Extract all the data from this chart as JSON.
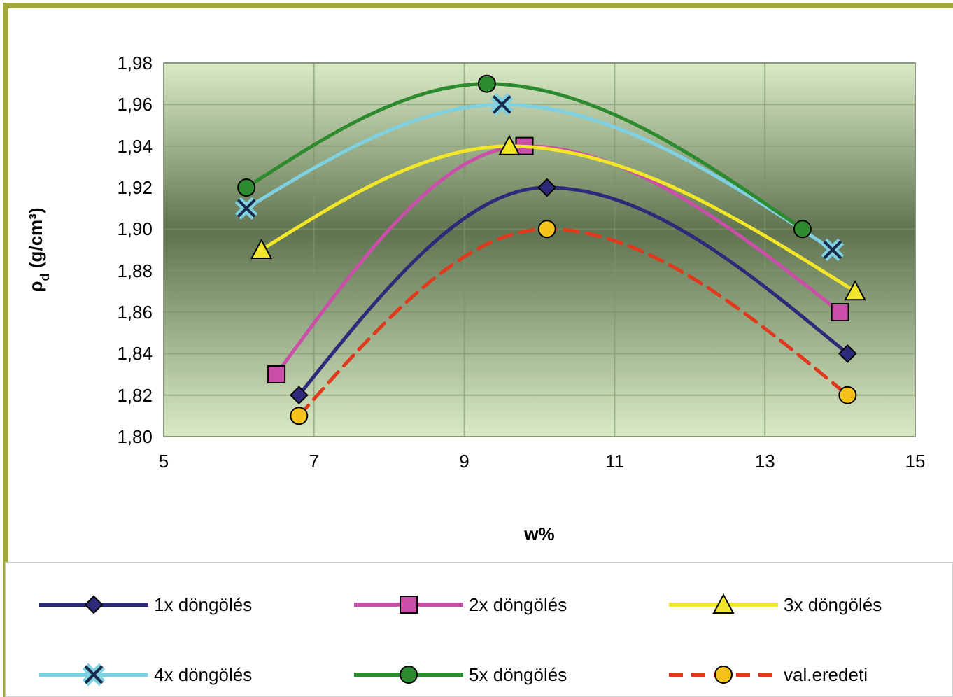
{
  "chart_data": {
    "type": "line",
    "xlabel": "w%",
    "ylabel": "ρ$_{d}$ (g/cm³)",
    "xlim": [
      5,
      15
    ],
    "xticks": [
      5,
      7,
      9,
      11,
      13,
      15
    ],
    "ylim": [
      1.8,
      1.98
    ],
    "yticks": [
      {
        "value": 1.8,
        "label": "1,80"
      },
      {
        "value": 1.82,
        "label": "1,82"
      },
      {
        "value": 1.84,
        "label": "1,84"
      },
      {
        "value": 1.86,
        "label": "1,86"
      },
      {
        "value": 1.88,
        "label": "1,88"
      },
      {
        "value": 1.9,
        "label": "1,90"
      },
      {
        "value": 1.92,
        "label": "1,92"
      },
      {
        "value": 1.94,
        "label": "1,94"
      },
      {
        "value": 1.96,
        "label": "1,96"
      },
      {
        "value": 1.98,
        "label": "1,98"
      }
    ],
    "grid": true,
    "legend": "bottom",
    "series": [
      {
        "name": "1x döngölés",
        "color": "#2e2a7a",
        "marker": "diamond",
        "x": [
          6.8,
          10.1,
          14.1
        ],
        "values": [
          1.82,
          1.92,
          1.84
        ]
      },
      {
        "name": "2x döngölés",
        "color": "#c94fa8",
        "marker": "square",
        "x": [
          6.5,
          9.8,
          14.0
        ],
        "values": [
          1.83,
          1.94,
          1.86
        ]
      },
      {
        "name": "3x döngölés",
        "color": "#f2e62a",
        "marker": "triangle",
        "x": [
          6.3,
          9.6,
          14.2
        ],
        "values": [
          1.89,
          1.94,
          1.87
        ]
      },
      {
        "name": "4x döngölés",
        "color": "#7fd0e0",
        "marker": "cross",
        "x": [
          6.1,
          9.5,
          13.9
        ],
        "values": [
          1.91,
          1.96,
          1.89
        ]
      },
      {
        "name": "5x döngölés",
        "color": "#2e8a2e",
        "marker": "circle",
        "x": [
          6.1,
          9.3,
          13.5
        ],
        "values": [
          1.92,
          1.97,
          1.9
        ]
      },
      {
        "name": "val.eredeti",
        "color": "#e03a1e",
        "marker": "circle",
        "line_style": "dashed",
        "x": [
          6.8,
          10.1,
          14.1
        ],
        "values": [
          1.81,
          1.9,
          1.82
        ]
      }
    ]
  }
}
